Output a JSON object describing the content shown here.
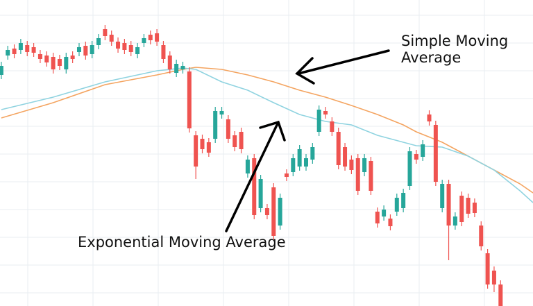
{
  "chart_data": {
    "type": "candlestick",
    "xlim": [
      -0.2,
      82
    ],
    "ylim": [
      0,
      441
    ],
    "grid": true,
    "up_color": "#26a69a",
    "down_color": "#ef5350",
    "open": [
      333,
      361,
      371,
      369,
      376,
      373,
      363,
      361,
      359,
      356,
      341,
      361,
      366,
      375,
      363,
      376,
      399,
      391,
      381,
      379,
      376,
      363,
      379,
      391,
      393,
      376,
      361,
      336,
      341,
      338,
      246,
      241,
      236,
      241,
      276,
      269,
      246,
      251,
      191,
      213,
      141,
      141,
      171,
      116,
      191,
      193,
      201,
      201,
      211,
      251,
      281,
      266,
      251,
      229,
      211,
      213,
      193,
      209,
      136,
      129,
      126,
      136,
      141,
      173,
      219,
      215,
      276,
      261,
      141,
      176,
      116,
      159,
      156,
      149,
      116,
      76,
      51,
      31
    ],
    "close": [
      346,
      369,
      363,
      379,
      366,
      365,
      356,
      351,
      341,
      346,
      359,
      356,
      373,
      361,
      376,
      386,
      389,
      381,
      371,
      369,
      366,
      373,
      386,
      383,
      381,
      356,
      341,
      349,
      346,
      256,
      201,
      226,
      221,
      281,
      281,
      241,
      229,
      226,
      211,
      131,
      183,
      131,
      101,
      156,
      186,
      213,
      226,
      213,
      229,
      283,
      276,
      251,
      203,
      201,
      196,
      166,
      213,
      166,
      119,
      139,
      115,
      156,
      163,
      223,
      211,
      233,
      266,
      179,
      176,
      116,
      129,
      121,
      133,
      134,
      86,
      31,
      31,
      0
    ],
    "high": [
      352,
      375,
      377,
      385,
      382,
      379,
      369,
      367,
      365,
      362,
      365,
      367,
      379,
      381,
      382,
      392,
      405,
      397,
      387,
      385,
      382,
      379,
      392,
      397,
      399,
      382,
      367,
      355,
      352,
      344,
      252,
      247,
      242,
      287,
      287,
      275,
      252,
      257,
      217,
      219,
      189,
      147,
      177,
      162,
      197,
      219,
      232,
      219,
      235,
      289,
      287,
      272,
      257,
      235,
      217,
      219,
      219,
      215,
      142,
      145,
      132,
      162,
      169,
      229,
      225,
      239,
      282,
      267,
      182,
      182,
      135,
      165,
      162,
      155,
      122,
      82,
      57,
      37
    ],
    "low": [
      327,
      355,
      357,
      363,
      360,
      359,
      350,
      345,
      335,
      340,
      335,
      350,
      360,
      355,
      357,
      370,
      383,
      375,
      365,
      363,
      360,
      357,
      373,
      377,
      375,
      350,
      335,
      330,
      335,
      250,
      183,
      220,
      215,
      235,
      270,
      235,
      223,
      220,
      185,
      125,
      135,
      125,
      95,
      110,
      180,
      187,
      195,
      195,
      205,
      245,
      270,
      245,
      197,
      195,
      190,
      160,
      187,
      160,
      113,
      123,
      109,
      130,
      135,
      167,
      205,
      209,
      260,
      173,
      135,
      66,
      110,
      115,
      127,
      128,
      80,
      25,
      20,
      0
    ],
    "lines": [
      {
        "color": "#f4a460",
        "x": [
          0,
          8,
          16,
          24,
          28,
          30,
          34,
          38,
          42,
          46,
          50,
          54,
          58,
          62,
          64,
          68,
          72,
          76,
          80,
          82
        ],
        "values": [
          271,
          293,
          319,
          333,
          341,
          344,
          341,
          333,
          323,
          311,
          301,
          289,
          276,
          261,
          251,
          236,
          216,
          196,
          176,
          163
        ]
      },
      {
        "color": "#8fd3e0",
        "x": [
          0,
          8,
          16,
          24,
          28,
          30,
          34,
          38,
          42,
          46,
          50,
          54,
          58,
          62,
          64,
          68,
          72,
          76,
          80,
          82
        ],
        "values": [
          283,
          301,
          323,
          339,
          343,
          341,
          323,
          311,
          293,
          276,
          266,
          261,
          246,
          236,
          231,
          229,
          216,
          196,
          166,
          149
        ]
      }
    ],
    "sma_label": [
      "Simple Moving",
      "Average"
    ],
    "ema_label": "Exponential Moving Average"
  }
}
